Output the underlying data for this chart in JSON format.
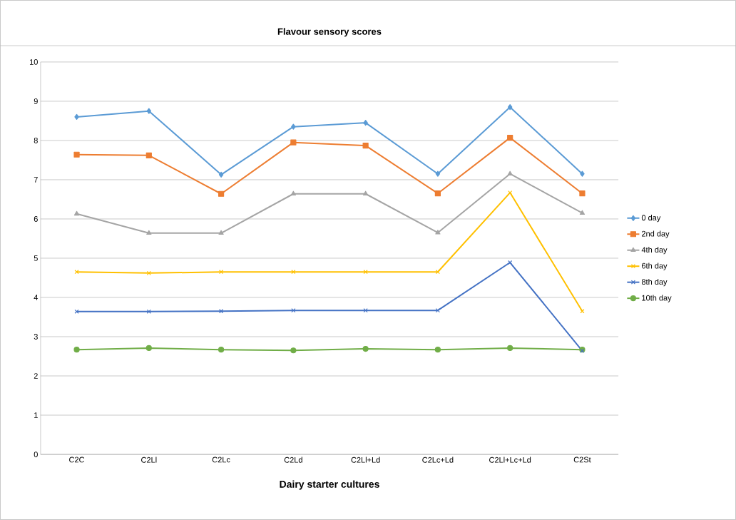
{
  "chart_data": {
    "type": "line",
    "title": "Flavour sensory scores",
    "xlabel": "Dairy starter cultures",
    "categories": [
      "C2C",
      "C2Ll",
      "C2Lc",
      "C2Ld",
      "C2Ll+Ld",
      "C2Lc+Ld",
      "C2Ll+Lc+Ld",
      "C2St"
    ],
    "series": [
      {
        "name": "0 day",
        "color": "#5b9bd5",
        "marker": "diamond",
        "values": [
          8.6,
          8.75,
          7.13,
          8.35,
          8.45,
          7.15,
          8.85,
          7.15
        ]
      },
      {
        "name": "2nd day",
        "color": "#ed7d31",
        "marker": "square",
        "values": [
          7.64,
          7.62,
          6.64,
          7.95,
          7.87,
          6.65,
          8.07,
          6.65
        ]
      },
      {
        "name": "4th day",
        "color": "#a5a5a5",
        "marker": "triangle",
        "values": [
          6.13,
          5.64,
          5.64,
          6.64,
          6.64,
          5.65,
          7.15,
          6.15
        ]
      },
      {
        "name": "6th day",
        "color": "#ffc000",
        "marker": "cross",
        "values": [
          4.65,
          4.62,
          4.65,
          4.65,
          4.65,
          4.65,
          6.67,
          3.65
        ]
      },
      {
        "name": "8th day",
        "color": "#4472c4",
        "marker": "cross",
        "values": [
          3.64,
          3.64,
          3.65,
          3.67,
          3.67,
          3.67,
          4.89,
          2.64
        ]
      },
      {
        "name": "10th day",
        "color": "#70ad47",
        "marker": "circle",
        "values": [
          2.67,
          2.71,
          2.67,
          2.65,
          2.69,
          2.67,
          2.71,
          2.67
        ]
      }
    ],
    "ylim": [
      0,
      10
    ],
    "yticks": [
      0,
      1,
      2,
      3,
      4,
      5,
      6,
      7,
      8,
      9,
      10
    ],
    "grid": "y",
    "legend": "right",
    "line_style": "solid"
  }
}
